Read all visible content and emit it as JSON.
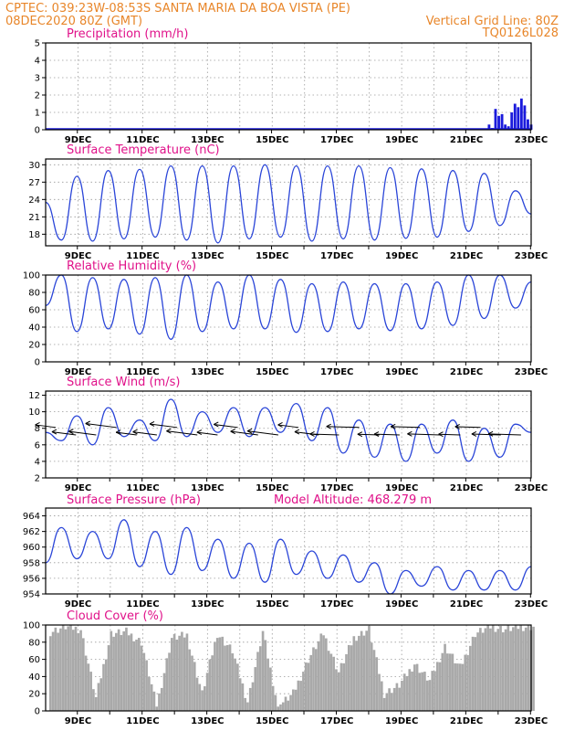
{
  "header": {
    "line1_left": "CPTEC:   039:23W-08:53S   SANTA MARIA DA BOA VISTA (PE)",
    "line2_left": "08DEC2020 80Z (GMT)",
    "line2_right": "Vertical Grid Line: 80Z",
    "line3_right": "TQ0126L028"
  },
  "date_labels": [
    "9DEC",
    "11DEC",
    "13DEC",
    "15DEC",
    "17DEC",
    "19DEC",
    "21DEC",
    "23DEC"
  ],
  "chart_data": [
    {
      "type": "bar",
      "title": "Precipitation (mm/h)",
      "ylim": [
        0,
        5
      ],
      "yticks": [
        0,
        1,
        2,
        3,
        4,
        5
      ],
      "color": "#1a1adc",
      "x": [
        13.7,
        13.8,
        13.9,
        14.0,
        14.1,
        14.2,
        14.3,
        14.4,
        14.5,
        14.6,
        14.7,
        14.8,
        14.9,
        15.0
      ],
      "values": [
        0.3,
        0.1,
        1.2,
        0.8,
        0.9,
        0.3,
        0.2,
        1.0,
        1.5,
        1.3,
        1.8,
        1.4,
        0.6,
        0.3
      ],
      "x_range_days": [
        0,
        15
      ]
    },
    {
      "type": "line",
      "title": "Surface Temperature (nC)",
      "ylim": [
        16,
        31
      ],
      "yticks": [
        18,
        21,
        24,
        27,
        30
      ],
      "color": "#2a45d8",
      "series": [
        {
          "values": [
            23.5,
            17.0,
            28.0,
            16.8,
            29.0,
            17.2,
            29.2,
            17.5,
            29.8,
            17.0,
            29.8,
            16.5,
            29.8,
            17.2,
            30.0,
            17.5,
            29.8,
            16.8,
            29.8,
            17.2,
            29.8,
            17.0,
            29.5,
            17.3,
            29.3,
            17.5,
            29.0,
            18.5,
            28.5,
            19.5,
            25.5,
            21.5
          ]
        }
      ]
    },
    {
      "type": "line",
      "title": "Relative Humidity (%)",
      "ylim": [
        0,
        100
      ],
      "yticks": [
        0,
        20,
        40,
        60,
        80,
        100
      ],
      "color": "#2a45d8",
      "series": [
        {
          "values": [
            65,
            100,
            35,
            97,
            38,
            95,
            32,
            97,
            26,
            100,
            35,
            92,
            38,
            100,
            38,
            95,
            34,
            90,
            35,
            92,
            38,
            90,
            36,
            90,
            38,
            92,
            42,
            100,
            50,
            100,
            62,
            92
          ]
        }
      ]
    },
    {
      "type": "line",
      "title": "Surface Wind (m/s)",
      "ylim": [
        2,
        12.5
      ],
      "yticks": [
        2,
        4,
        6,
        8,
        10,
        12
      ],
      "color": "#2a45d8",
      "series": [
        {
          "values": [
            7.5,
            6.5,
            9.5,
            6.0,
            10.5,
            7.0,
            9.0,
            6.5,
            11.5,
            7.0,
            10.0,
            7.5,
            10.5,
            7.0,
            10.5,
            7.5,
            11.0,
            6.5,
            10.5,
            5.0,
            9.0,
            4.5,
            8.5,
            4.0,
            8.5,
            5.0,
            9.0,
            4.0,
            8.0,
            4.5,
            8.5,
            7.5
          ]
        }
      ]
    },
    {
      "type": "line",
      "title": "Surface Pressure (hPa)",
      "annotation": "Model Altitude: 468.279 m",
      "ylim": [
        954,
        965
      ],
      "yticks": [
        954,
        956,
        958,
        960,
        962,
        964
      ],
      "color": "#2a45d8",
      "series": [
        {
          "values": [
            958.0,
            962.5,
            958.5,
            962.0,
            958.5,
            963.5,
            957.5,
            962.0,
            956.5,
            962.5,
            957.0,
            961.0,
            956.0,
            960.5,
            955.5,
            961.0,
            956.5,
            959.5,
            956.0,
            959.0,
            955.5,
            958.0,
            954.0,
            957.0,
            955.0,
            957.5,
            954.5,
            957.0,
            954.5,
            957.0,
            954.5,
            957.5
          ]
        }
      ]
    },
    {
      "type": "area",
      "title": "Cloud Cover (%)",
      "ylim": [
        0,
        100
      ],
      "yticks": [
        0,
        20,
        40,
        60,
        80,
        100
      ],
      "color": "#a9a9a9",
      "series": [
        {
          "values": [
            92,
            98,
            95,
            15,
            90,
            92,
            80,
            5,
            85,
            88,
            20,
            90,
            70,
            10,
            92,
            5,
            20,
            60,
            90,
            45,
            85,
            95,
            20,
            30,
            55,
            35,
            75,
            50,
            90,
            98,
            95,
            98
          ]
        }
      ]
    }
  ]
}
